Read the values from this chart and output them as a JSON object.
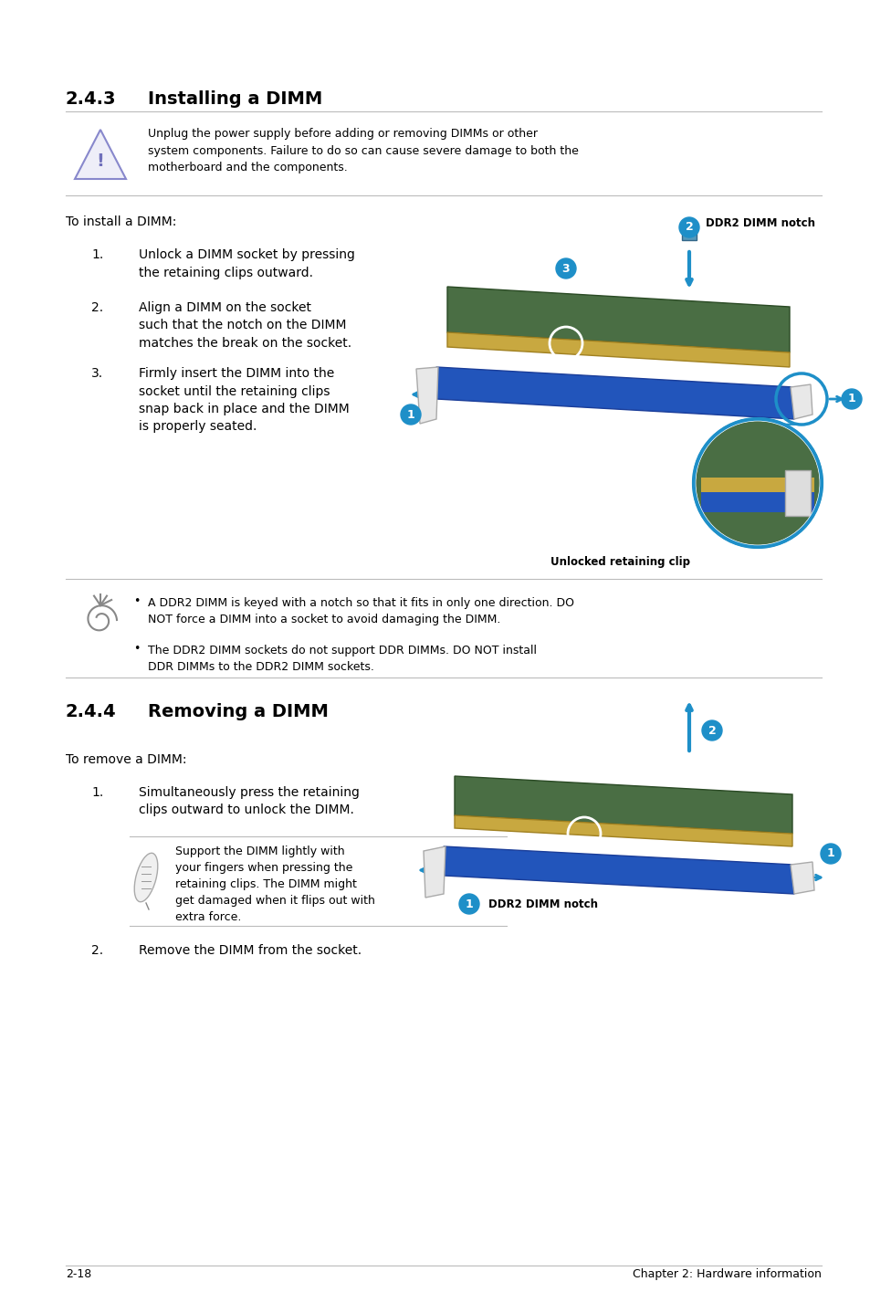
{
  "bg_color": "#ffffff",
  "lm": 0.075,
  "rm": 0.955,
  "section1_title_num": "2.4.3",
  "section1_title_text": "Installing a DIMM",
  "section2_title_num": "2.4.4",
  "section2_title_text": "Removing a DIMM",
  "warning_text": "Unplug the power supply before adding or removing DIMMs or other\nsystem components. Failure to do so can cause severe damage to both the\nmotherboard and the components.",
  "install_intro": "To install a DIMM:",
  "install_steps": [
    [
      "1.",
      "Unlock a DIMM socket by pressing\nthe retaining clips outward."
    ],
    [
      "2.",
      "Align a DIMM on the socket\nsuch that the notch on the DIMM\nmatches the break on the socket."
    ],
    [
      "3.",
      "Firmly insert the DIMM into the\nsocket until the retaining clips\nsnap back in place and the DIMM\nis properly seated."
    ]
  ],
  "install_caption": "Unlocked retaining clip",
  "note_bullets": [
    "A DDR2 DIMM is keyed with a notch so that it fits in only one direction. DO\nNOT force a DIMM into a socket to avoid damaging the DIMM.",
    "The DDR2 DIMM sockets do not support DDR DIMMs. DO NOT install\nDDR DIMMs to the DDR2 DIMM sockets."
  ],
  "remove_intro": "To remove a DIMM:",
  "remove_step1": [
    "1.",
    "Simultaneously press the retaining\nclips outward to unlock the DIMM."
  ],
  "remove_note": "Support the DIMM lightly with\nyour fingers when pressing the\nretaining clips. The DIMM might\nget damaged when it flips out with\nextra force.",
  "remove_step2": [
    "2.",
    "Remove the DIMM from the socket."
  ],
  "footer_left": "2-18",
  "footer_right": "Chapter 2: Hardware information",
  "accent": "#1e8fc8",
  "text_color": "#000000",
  "line_color": "#bbbbbb"
}
